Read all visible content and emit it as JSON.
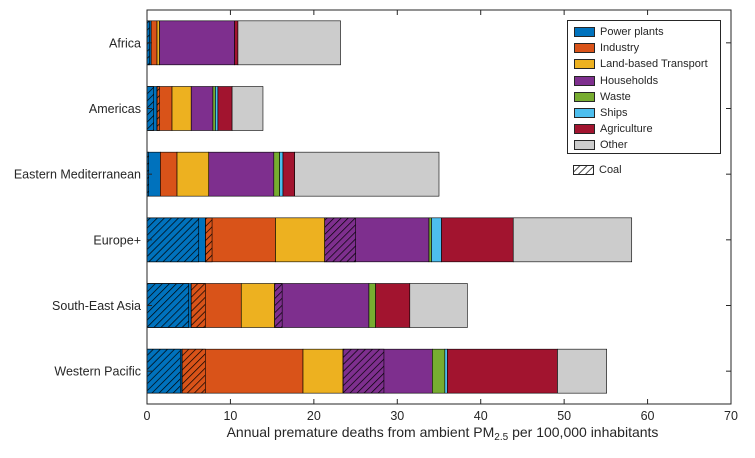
{
  "chart_data": {
    "type": "bar",
    "orientation": "horizontal",
    "stacked": true,
    "categories": [
      "Africa",
      "Americas",
      "Eastern Mediterranean",
      "Europe+",
      "South-East Asia",
      "Western Pacific"
    ],
    "series": [
      {
        "name": "Power plants",
        "color": "#0072BD",
        "values": [
          0.5,
          1.2,
          1.6,
          7.0,
          5.3,
          4.2
        ],
        "coal": [
          0.3,
          0.8,
          0.2,
          6.2,
          5.0,
          4.0
        ]
      },
      {
        "name": "Industry",
        "color": "#D95319",
        "values": [
          0.7,
          1.8,
          2.0,
          8.4,
          6.0,
          14.5
        ],
        "coal": [
          0.0,
          0.3,
          0.0,
          0.8,
          1.7,
          2.8
        ]
      },
      {
        "name": "Land-based Transport",
        "color": "#EDB120",
        "values": [
          0.3,
          2.3,
          3.8,
          5.9,
          4.0,
          4.8
        ],
        "coal": [
          0,
          0,
          0,
          0,
          0,
          0
        ]
      },
      {
        "name": "Households",
        "color": "#7E2F8E",
        "values": [
          9.0,
          2.6,
          7.8,
          12.5,
          11.3,
          10.7
        ],
        "coal": [
          0,
          0,
          0,
          3.7,
          0.9,
          4.9
        ]
      },
      {
        "name": "Waste",
        "color": "#77AC30",
        "values": [
          0.0,
          0.3,
          0.7,
          0.3,
          0.8,
          1.5
        ],
        "coal": [
          0,
          0,
          0,
          0,
          0,
          0
        ]
      },
      {
        "name": "Ships",
        "color": "#4DBEEE",
        "values": [
          0.0,
          0.3,
          0.4,
          1.2,
          0.0,
          0.3
        ],
        "coal": [
          0,
          0,
          0,
          0,
          0,
          0
        ]
      },
      {
        "name": "Agriculture",
        "color": "#A2142F",
        "values": [
          0.4,
          1.7,
          1.4,
          8.6,
          4.1,
          13.2
        ],
        "coal": [
          0,
          0,
          0,
          0,
          0,
          0
        ]
      },
      {
        "name": "Other",
        "color": "#CCCCCC",
        "values": [
          12.3,
          3.7,
          17.3,
          14.2,
          6.9,
          5.9
        ],
        "coal": [
          0,
          0,
          0,
          0,
          0,
          0
        ]
      }
    ],
    "coal_legend": "Coal",
    "xlabel_main": "Annual premature deaths from ambient PM",
    "xlabel_sub": "2.5",
    "xlabel_tail": " per 100,000 inhabitants",
    "xlim": [
      0,
      70
    ],
    "xticks": [
      0,
      10,
      20,
      30,
      40,
      50,
      60,
      70
    ],
    "grid": false,
    "legend_position": "top-right"
  }
}
